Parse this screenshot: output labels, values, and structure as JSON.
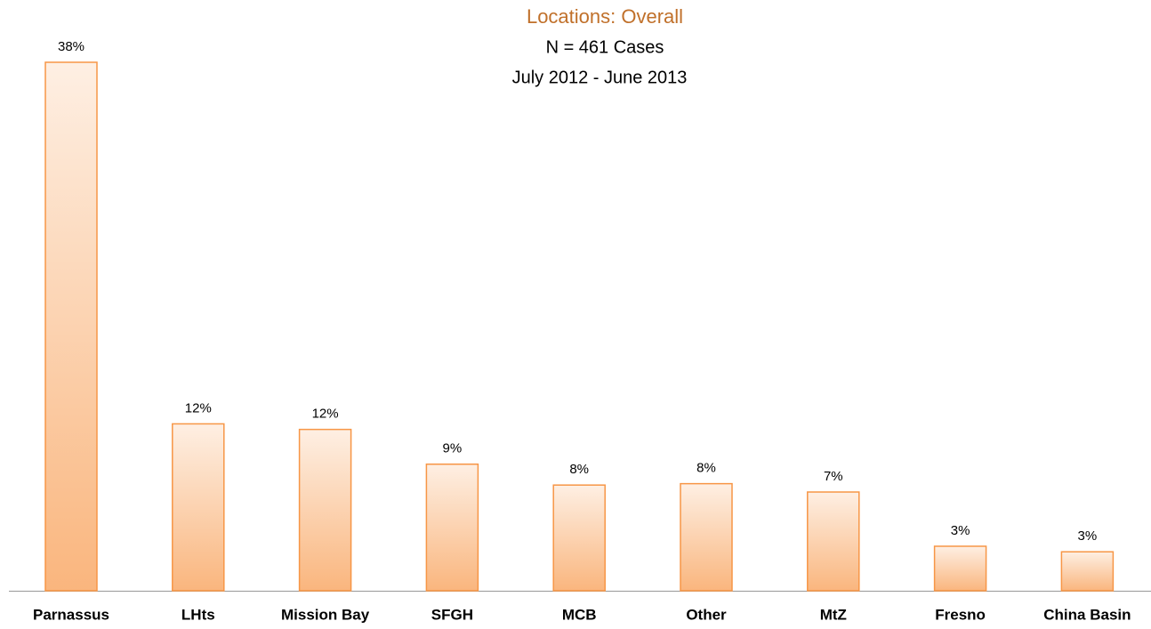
{
  "chart_data": {
    "type": "bar",
    "title": "Locations:  Overall",
    "subtitle": [
      "N = 461 Cases",
      "July 2012 - June 2013"
    ],
    "categories": [
      "Parnassus",
      "LHts",
      "Mission Bay",
      "SFGH",
      "MCB",
      "Other",
      "MtZ",
      "Fresno",
      "China Basin"
    ],
    "values": [
      38,
      12,
      11.6,
      9.1,
      7.6,
      7.7,
      7.1,
      3.2,
      2.8
    ],
    "value_labels": [
      "38%",
      "12%",
      "12%",
      "9%",
      "8%",
      "8%",
      "7%",
      "3%",
      "3%"
    ],
    "color": "#f79646"
  }
}
